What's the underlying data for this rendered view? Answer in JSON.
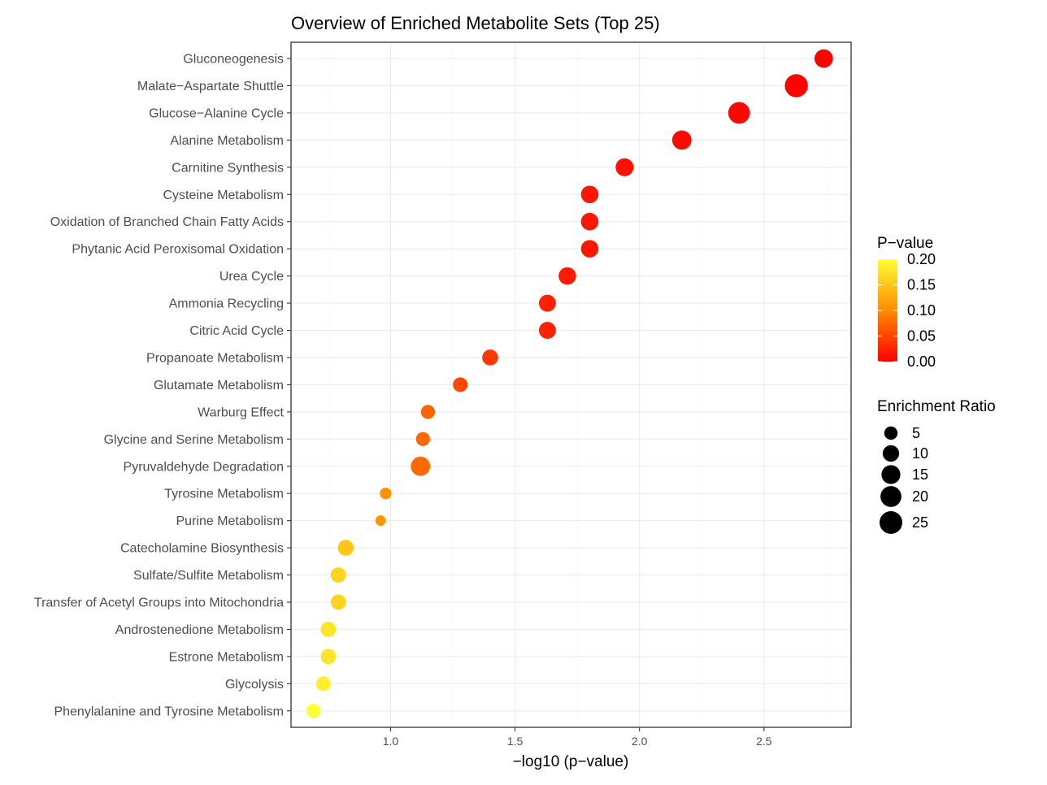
{
  "chart_data": {
    "type": "scatter",
    "title": "Overview of Enriched Metabolite Sets (Top 25)",
    "xlabel": "−log10 (p−value)",
    "xlim": [
      0.6,
      2.85
    ],
    "xticks": [
      1.0,
      1.5,
      2.0,
      2.5
    ],
    "x_tick_labels": [
      "1.0",
      "1.5",
      "2.0",
      "2.5"
    ],
    "grid": true,
    "categories": [
      "Gluconeogenesis",
      "Malate−Aspartate Shuttle",
      "Glucose−Alanine Cycle",
      "Alanine Metabolism",
      "Carnitine Synthesis",
      "Cysteine Metabolism",
      "Oxidation of Branched Chain Fatty Acids",
      "Phytanic Acid Peroxisomal Oxidation",
      "Urea Cycle",
      "Ammonia Recycling",
      "Citric Acid Cycle",
      "Propanoate Metabolism",
      "Glutamate Metabolism",
      "Warburg Effect",
      "Glycine and Serine Metabolism",
      "Pyruvaldehyde Degradation",
      "Tyrosine Metabolism",
      "Purine Metabolism",
      "Catecholamine Biosynthesis",
      "Sulfate/Sulfite Metabolism",
      "Transfer of Acetyl Groups into Mitochondria",
      "Androstenedione Metabolism",
      "Estrone Metabolism",
      "Glycolysis",
      "Phenylalanine and Tyrosine Metabolism"
    ],
    "neg_log10_p": [
      2.74,
      2.63,
      2.4,
      2.17,
      1.94,
      1.8,
      1.8,
      1.8,
      1.71,
      1.63,
      1.63,
      1.4,
      1.28,
      1.15,
      1.13,
      1.12,
      0.98,
      0.96,
      0.82,
      0.79,
      0.79,
      0.75,
      0.75,
      0.73,
      0.69
    ],
    "p_value": [
      0.0018,
      0.0023,
      0.004,
      0.0068,
      0.0115,
      0.0158,
      0.0158,
      0.0158,
      0.0195,
      0.0234,
      0.0234,
      0.0398,
      0.0525,
      0.0708,
      0.0741,
      0.0759,
      0.1047,
      0.1096,
      0.1514,
      0.1622,
      0.1622,
      0.1778,
      0.1778,
      0.1862,
      0.2042
    ],
    "enrichment_ratio": [
      14,
      26,
      22,
      16,
      13,
      12,
      12,
      12,
      12,
      11,
      11,
      9,
      7,
      6,
      6,
      16,
      3,
      2,
      9,
      8,
      8,
      8,
      8,
      7,
      6
    ],
    "legend": {
      "position": "right",
      "color": {
        "title": "P−value",
        "ticks": [
          0.2,
          0.15,
          0.1,
          0.05,
          0.0
        ],
        "tick_labels": [
          "0.20",
          "0.15",
          "0.10",
          "0.05",
          "0.00"
        ],
        "low_color": "#FF0000",
        "mid_color": "#FF8C00",
        "high_color": "#FFFF33"
      },
      "size": {
        "title": "Enrichment Ratio",
        "values": [
          5,
          10,
          15,
          20,
          25
        ],
        "labels": [
          "5",
          "10",
          "15",
          "20",
          "25"
        ]
      }
    }
  }
}
